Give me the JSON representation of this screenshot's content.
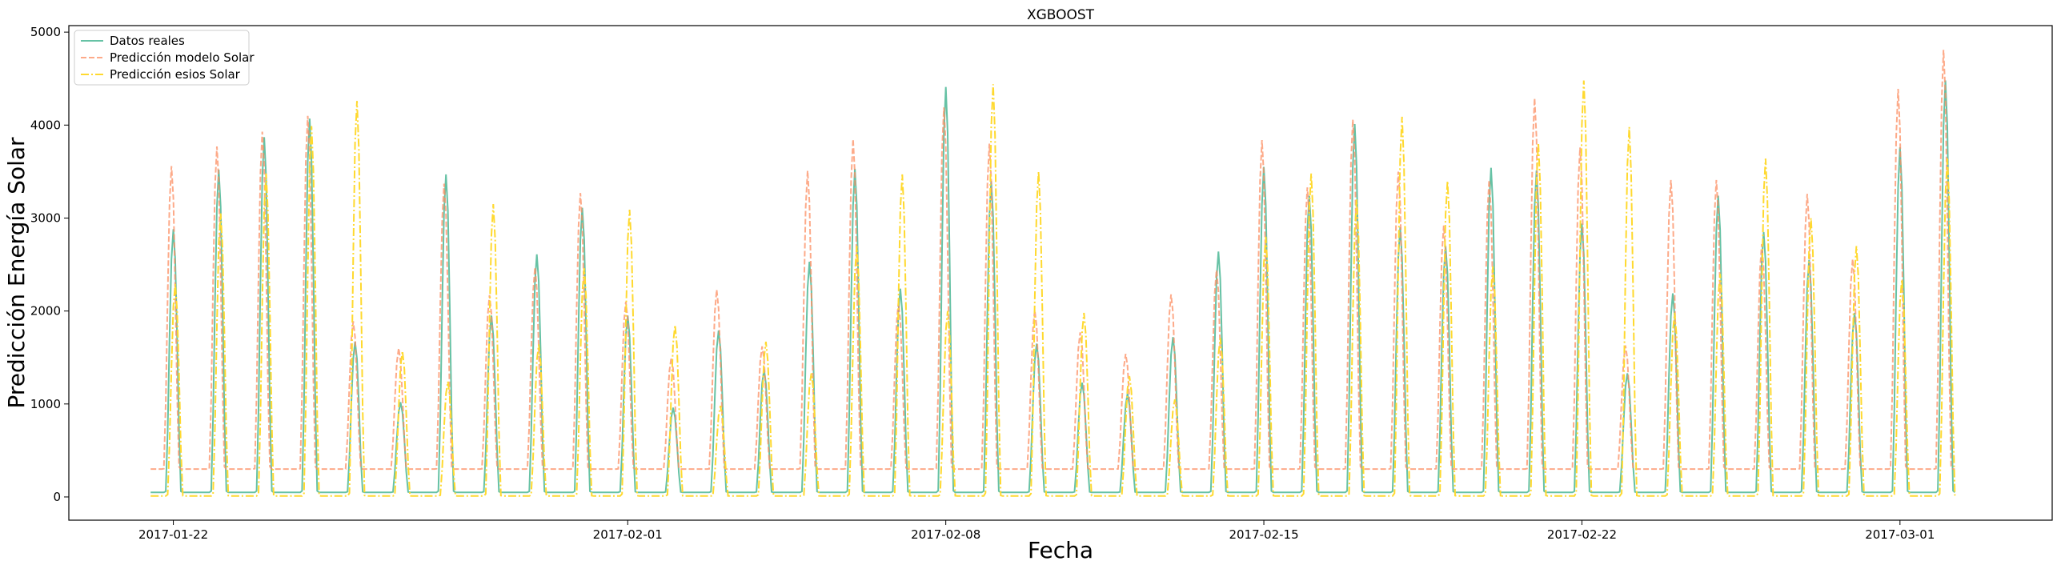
{
  "chart_data": {
    "type": "line",
    "title": "XGBOOST",
    "xlabel": "Fecha",
    "ylabel": "Predicción Energía Solar",
    "ylim": [
      -250,
      5070
    ],
    "yticks": [
      0,
      1000,
      2000,
      3000,
      4000,
      5000
    ],
    "xlim_days": [
      -2.3,
      41.35
    ],
    "x_start_date": "2017-01-22",
    "xticks": [
      {
        "day": 0,
        "label": "2017-01-22"
      },
      {
        "day": 10,
        "label": "2017-02-01"
      },
      {
        "day": 17,
        "label": "2017-02-08"
      },
      {
        "day": 24,
        "label": "2017-02-15"
      },
      {
        "day": 31,
        "label": "2017-02-22"
      },
      {
        "day": 38,
        "label": "2017-03-01"
      }
    ],
    "legend_position": "upper left",
    "series": [
      {
        "name": "Datos reales",
        "color": "#66c2a5",
        "dash": "solid",
        "night": 50,
        "peaks": [
          2880,
          3520,
          3870,
          4070,
          1670,
          1020,
          3470,
          1950,
          2610,
          3110,
          1950,
          960,
          1790,
          1370,
          2530,
          3530,
          2240,
          4410,
          3400,
          1650,
          1230,
          1110,
          1720,
          2640,
          3550,
          3240,
          4010,
          2900,
          2700,
          3540,
          3510,
          2940,
          1330,
          2190,
          3240,
          2850,
          2550,
          1980,
          3760,
          4480
        ]
      },
      {
        "name": "Predicción modelo Solar",
        "color": "#fc8d62",
        "dash": "dashed",
        "night": 300,
        "peaks": [
          3560,
          3770,
          3930,
          4100,
          1890,
          1600,
          3370,
          2170,
          2470,
          3270,
          2100,
          1500,
          2230,
          1620,
          3510,
          3850,
          2090,
          4190,
          3800,
          2010,
          1770,
          1540,
          2180,
          2440,
          3840,
          3330,
          4060,
          3500,
          2920,
          3410,
          4290,
          3760,
          1630,
          3410,
          3410,
          2720,
          3260,
          2560,
          4390,
          4810
        ]
      },
      {
        "name": "Predicción esios Solar",
        "color": "#ffd92f",
        "dash": "dashdot",
        "night": 10,
        "peaks": [
          2290,
          3050,
          3480,
          3990,
          4260,
          1570,
          1240,
          3150,
          1640,
          2460,
          3090,
          1850,
          980,
          1670,
          1330,
          2700,
          3470,
          2000,
          4440,
          3500,
          1980,
          1300,
          1050,
          1710,
          2800,
          3480,
          3200,
          4090,
          3400,
          2480,
          3810,
          4480,
          3980,
          1980,
          2400,
          3640,
          3000,
          2700,
          2340,
          3640
        ]
      }
    ]
  }
}
